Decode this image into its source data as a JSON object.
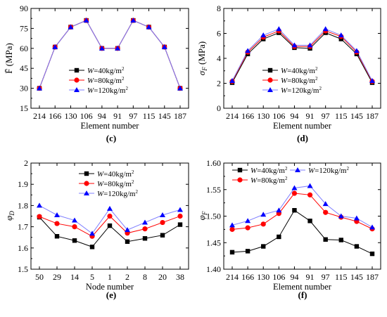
{
  "legend_labels": {
    "w40": {
      "var": "W",
      "eq": "=40kg/m",
      "sup": "2"
    },
    "w80": {
      "var": "W",
      "eq": "=80kg/m",
      "sup": "2"
    },
    "w120": {
      "var": "W",
      "eq": "=120kg/m",
      "sup": "2"
    }
  },
  "colors": {
    "w40": "#000000",
    "w80": "#ff0000",
    "w120": "#0000ff",
    "w120_line": "#7f7fff"
  },
  "chart_data": [
    {
      "id": "c",
      "panel_label": "(c)",
      "type": "line",
      "xlabel": "Element number",
      "ylabel": "F̄ (MPa)",
      "categories": [
        "214",
        "166",
        "130",
        "106",
        "94",
        "91",
        "97",
        "115",
        "145",
        "187"
      ],
      "ylim": [
        15,
        90
      ],
      "yticks": [
        15,
        30,
        45,
        60,
        75,
        90
      ],
      "grid": false,
      "legend_position": "lower-center",
      "series": [
        {
          "name": "W=40kg/m2",
          "values": [
            30,
            61,
            76,
            81,
            60,
            60,
            81,
            76,
            61,
            30
          ]
        },
        {
          "name": "W=80kg/m2",
          "values": [
            30,
            61,
            76,
            81,
            60,
            60,
            81,
            76,
            61,
            30
          ]
        },
        {
          "name": "W=120kg/m2",
          "values": [
            30,
            61,
            76,
            81,
            60,
            60,
            81,
            76,
            61,
            30
          ]
        }
      ]
    },
    {
      "id": "d",
      "panel_label": "(d)",
      "type": "line",
      "xlabel": "Element number",
      "ylabel": "σF (MPa)",
      "categories": [
        "214",
        "166",
        "130",
        "106",
        "94",
        "91",
        "97",
        "115",
        "145",
        "187"
      ],
      "ylim": [
        0,
        8
      ],
      "yticks": [
        0,
        2,
        4,
        6,
        8
      ],
      "grid": false,
      "legend_position": "lower-center",
      "series": [
        {
          "name": "W=40kg/m2",
          "values": [
            2.05,
            4.35,
            5.55,
            6.05,
            4.85,
            4.8,
            6.05,
            5.55,
            4.35,
            2.05
          ]
        },
        {
          "name": "W=80kg/m2",
          "values": [
            2.15,
            4.5,
            5.7,
            6.2,
            4.95,
            4.95,
            6.2,
            5.75,
            4.5,
            2.15
          ]
        },
        {
          "name": "W=120kg/m2",
          "values": [
            2.2,
            4.6,
            5.85,
            6.35,
            5.05,
            5.05,
            6.35,
            5.85,
            4.6,
            2.2
          ]
        }
      ]
    },
    {
      "id": "e",
      "panel_label": "(e)",
      "type": "line",
      "xlabel": "Node number",
      "ylabel": "φD",
      "categories": [
        "50",
        "29",
        "14",
        "5",
        "1",
        "2",
        "8",
        "20",
        "38"
      ],
      "ylim": [
        1.5,
        2.0
      ],
      "yticks": [
        1.5,
        1.6,
        1.7,
        1.8,
        1.9,
        2.0
      ],
      "grid": false,
      "legend_position": "top-center",
      "series": [
        {
          "name": "W=40kg/m2",
          "values": [
            1.745,
            1.655,
            1.635,
            1.605,
            1.705,
            1.63,
            1.645,
            1.66,
            1.71
          ]
        },
        {
          "name": "W=80kg/m2",
          "values": [
            1.748,
            1.715,
            1.7,
            1.655,
            1.75,
            1.67,
            1.69,
            1.72,
            1.75
          ]
        },
        {
          "name": "W=120kg/m2",
          "values": [
            1.8,
            1.755,
            1.73,
            1.668,
            1.785,
            1.685,
            1.72,
            1.755,
            1.78
          ]
        }
      ]
    },
    {
      "id": "f",
      "panel_label": "(f)",
      "type": "line",
      "xlabel": "Element number",
      "ylabel": "φF",
      "categories": [
        "214",
        "166",
        "130",
        "106",
        "94",
        "91",
        "97",
        "115",
        "145",
        "187"
      ],
      "ylim": [
        1.4,
        1.6
      ],
      "yticks": [
        1.4,
        1.45,
        1.5,
        1.55,
        1.6
      ],
      "ytick_labels": [
        "1.40",
        "1.45",
        "1.50",
        "1.55",
        "1.60"
      ],
      "grid": false,
      "legend_position": "top",
      "series": [
        {
          "name": "W=40kg/m2",
          "values": [
            1.432,
            1.434,
            1.443,
            1.461,
            1.511,
            1.491,
            1.456,
            1.455,
            1.443,
            1.429
          ]
        },
        {
          "name": "W=80kg/m2",
          "values": [
            1.475,
            1.478,
            1.485,
            1.505,
            1.543,
            1.54,
            1.507,
            1.498,
            1.49,
            1.476
          ]
        },
        {
          "name": "W=120kg/m2",
          "values": [
            1.483,
            1.491,
            1.503,
            1.511,
            1.553,
            1.557,
            1.523,
            1.5,
            1.496,
            1.479
          ]
        }
      ]
    }
  ]
}
